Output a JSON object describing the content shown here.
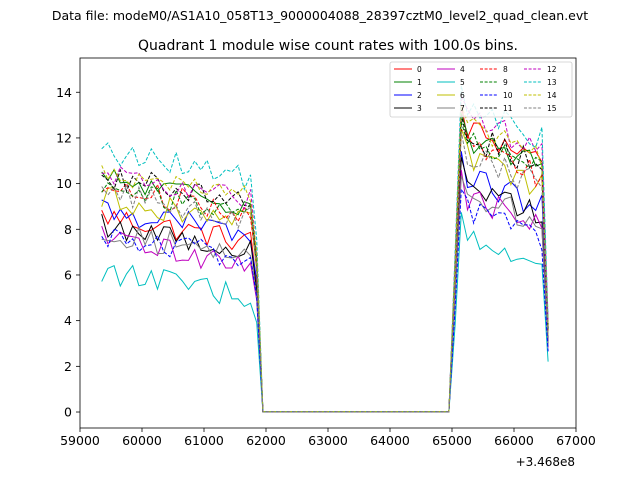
{
  "suptitle": "Data file: modeM0/AS1A10_058T13_9000004088_28397cztM0_level2_quad_clean.evt",
  "chart_data": {
    "type": "line",
    "title": "Quadrant 1 module wise count rates with 100.0s bins.",
    "xlabel": "",
    "ylabel": "",
    "offset_text": "+3.468e8",
    "xlim": [
      59000,
      67000
    ],
    "ylim": [
      -0.7,
      15.5
    ],
    "xticks": [
      59000,
      60000,
      61000,
      62000,
      63000,
      64000,
      65000,
      66000,
      67000
    ],
    "yticks": [
      0,
      2,
      4,
      6,
      8,
      10,
      12,
      14
    ],
    "grid": false,
    "legend_position": "upper-right",
    "x_segments": [
      {
        "start": 59350,
        "stop": 61850,
        "step": 100
      },
      {
        "start": 61950,
        "stop": 64950,
        "step": 100
      },
      {
        "start": 65050,
        "stop": 66550,
        "step": 100
      }
    ],
    "series": [
      {
        "name": "0",
        "color": "#ff0000",
        "style": "solid",
        "pre": 8.0,
        "post": 11.8
      },
      {
        "name": "1",
        "color": "#008000",
        "style": "solid",
        "pre": 9.6,
        "post": 11.4
      },
      {
        "name": "2",
        "color": "#0000ff",
        "style": "solid",
        "pre": 8.3,
        "post": 9.7
      },
      {
        "name": "3",
        "color": "#000000",
        "style": "solid",
        "pre": 7.6,
        "post": 9.4
      },
      {
        "name": "4",
        "color": "#bf00bf",
        "style": "solid",
        "pre": 7.0,
        "post": 8.8
      },
      {
        "name": "5",
        "color": "#00bfbf",
        "style": "solid",
        "pre": 5.6,
        "post": 6.9
      },
      {
        "name": "6",
        "color": "#bfbf00",
        "style": "solid",
        "pre": 8.8,
        "post": 10.5
      },
      {
        "name": "7",
        "color": "#808080",
        "style": "solid",
        "pre": 7.3,
        "post": 9.0
      },
      {
        "name": "8",
        "color": "#ff0000",
        "style": "dashed",
        "pre": 9.3,
        "post": 11.0
      },
      {
        "name": "9",
        "color": "#008000",
        "style": "dashed",
        "pre": 9.2,
        "post": 11.3
      },
      {
        "name": "10",
        "color": "#0000ff",
        "style": "dashed",
        "pre": 7.2,
        "post": 8.3
      },
      {
        "name": "11",
        "color": "#000000",
        "style": "dashed",
        "pre": 9.8,
        "post": 11.5
      },
      {
        "name": "12",
        "color": "#bf00bf",
        "style": "dashed",
        "pre": 9.8,
        "post": 12.3
      },
      {
        "name": "13",
        "color": "#00bfbf",
        "style": "dashed",
        "pre": 10.8,
        "post": 12.7
      },
      {
        "name": "14",
        "color": "#bfbf00",
        "style": "dashed",
        "pre": 10.0,
        "post": 11.8
      },
      {
        "name": "15",
        "color": "#808080",
        "style": "dashed",
        "pre": 9.0,
        "post": 10.6
      }
    ]
  }
}
